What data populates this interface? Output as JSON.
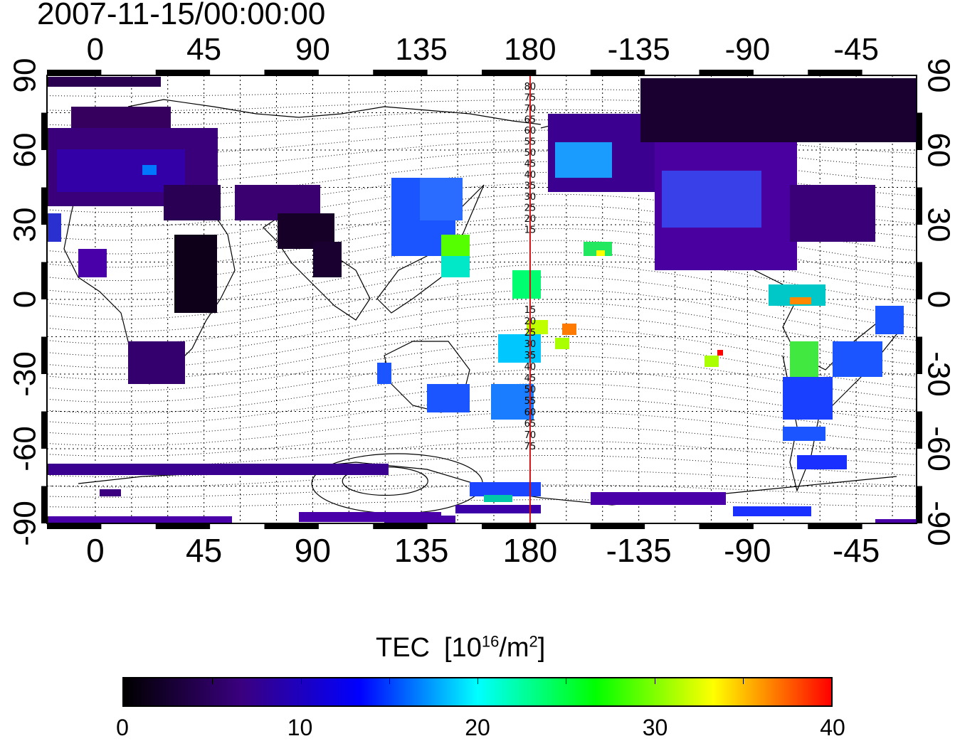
{
  "map": {
    "timestamp": "2007-11-15/00:00:00",
    "top_lon_labels": [
      "0",
      "45",
      "90",
      "135",
      "180",
      "-135",
      "-90",
      "-45"
    ],
    "bottom_lon_labels": [
      "0",
      "45",
      "90",
      "135",
      "180",
      "-135",
      "-90",
      "-45"
    ],
    "left_lat_labels": [
      "90",
      "60",
      "30",
      "0",
      "-30",
      "-60",
      "-90"
    ],
    "right_lat_labels": [
      "90",
      "60",
      "30",
      "0",
      "-30",
      "-60",
      "-90"
    ],
    "extent": {
      "lon_start": -20,
      "lon_end": 340,
      "lat_min": -90,
      "lat_max": 90
    },
    "meridian_marker_lon": 180,
    "contour_labels_north": [
      "80",
      "75",
      "70",
      "65",
      "60",
      "55",
      "50",
      "45",
      "40",
      "35",
      "30",
      "25",
      "20",
      "15"
    ],
    "contour_labels_south": [
      "15",
      "20",
      "25",
      "30",
      "35",
      "40",
      "45",
      "50",
      "55",
      "60",
      "65",
      "70",
      "75"
    ]
  },
  "colorbar": {
    "quantity": "TEC",
    "unit_prefix": "[10",
    "unit_exponent": "16",
    "unit_mid": "/m",
    "unit_exponent2": "2",
    "unit_suffix": "]",
    "min": 0,
    "max": 40,
    "tick_labels": [
      "0",
      "10",
      "20",
      "30",
      "40"
    ],
    "colors": [
      "#000000",
      "#3a0080",
      "#0000ff",
      "#00ffff",
      "#00ff00",
      "#ffff00",
      "#ff0000"
    ]
  }
}
